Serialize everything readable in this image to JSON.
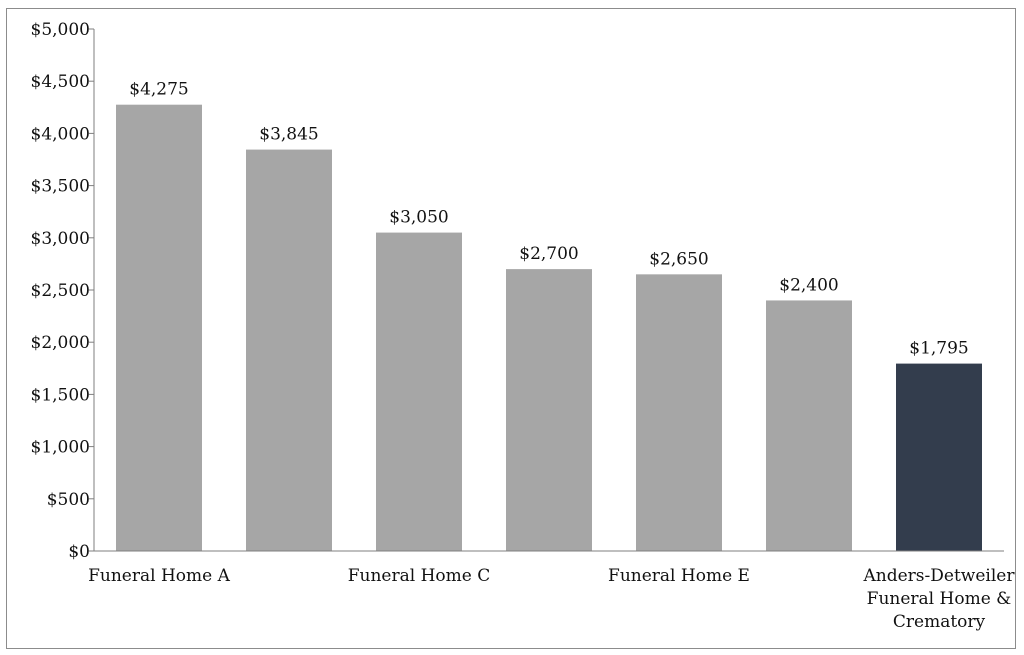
{
  "chart_data": {
    "type": "bar",
    "title": "",
    "xlabel": "",
    "ylabel": "",
    "ylim": [
      0,
      5000
    ],
    "yticks": [
      0,
      500,
      1000,
      1500,
      2000,
      2500,
      3000,
      3500,
      4000,
      4500,
      5000
    ],
    "ytick_labels": [
      "$0",
      "$500",
      "$1,000",
      "$1,500",
      "$2,000",
      "$2,500",
      "$3,000",
      "$3,500",
      "$4,000",
      "$4,500",
      "$5,000"
    ],
    "grid": false,
    "legend": "none",
    "categories": [
      "Funeral Home A",
      "",
      "Funeral Home C",
      "",
      "Funeral Home E",
      "",
      "Anders-Detweiler Funeral Home & Crematory"
    ],
    "category_label_lines": [
      [
        "Funeral Home A"
      ],
      [],
      [
        "Funeral Home C"
      ],
      [],
      [
        "Funeral Home E"
      ],
      [],
      [
        "Anders-Detweiler",
        "Funeral Home &",
        "Crematory"
      ]
    ],
    "values": [
      4275,
      3845,
      3050,
      2700,
      2650,
      2400,
      1795
    ],
    "value_labels": [
      "$4,275",
      "$3,845",
      "$3,050",
      "$2,700",
      "$2,650",
      "$2,400",
      "$1,795"
    ],
    "bar_colors": [
      "#a6a6a6",
      "#a6a6a6",
      "#a6a6a6",
      "#a6a6a6",
      "#a6a6a6",
      "#a6a6a6",
      "#333d4d"
    ]
  }
}
